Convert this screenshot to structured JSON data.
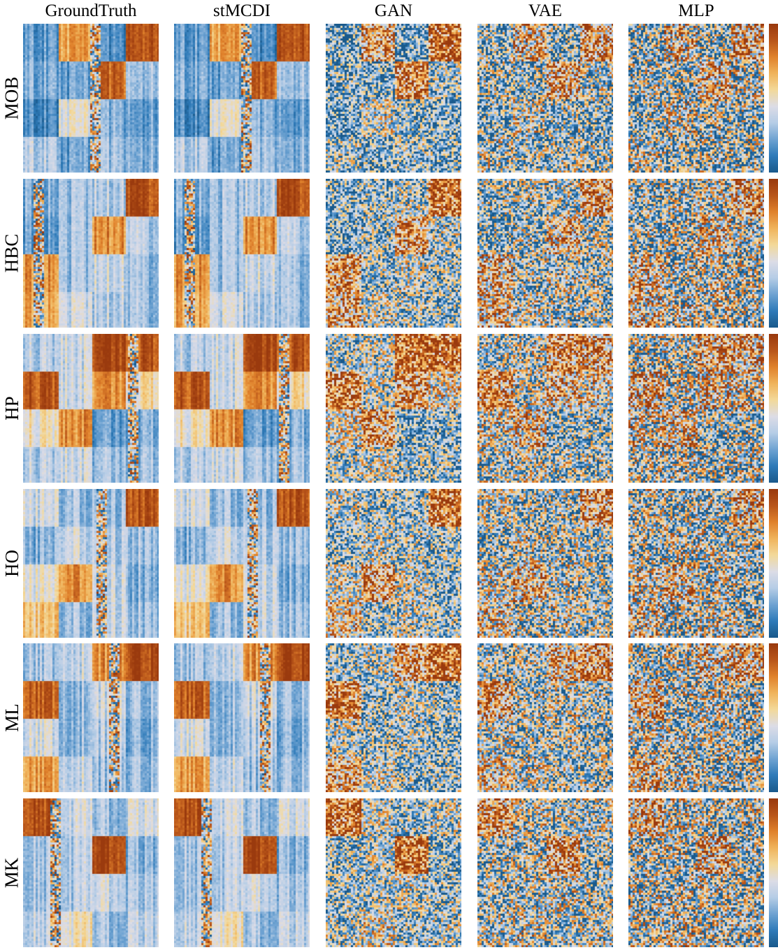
{
  "chart_data": {
    "type": "heatmap",
    "columns": [
      "GroundTruth",
      "stMCDI",
      "GAN",
      "VAE",
      "MLP"
    ],
    "rows": [
      "MOB",
      "HBC",
      "HP",
      "HO",
      "ML",
      "MK"
    ],
    "value_range": [
      0,
      1
    ],
    "colormap": {
      "low": "#1a5a8c",
      "mid": "#dcdce6",
      "high": "#9a3a0e",
      "stops": [
        "#1a5a8c",
        "#2f7bb9",
        "#6fa3d2",
        "#b6cde6",
        "#dcdce6",
        "#f3d99a",
        "#f0b45c",
        "#e0822c",
        "#b9561a",
        "#9a3a0e"
      ]
    },
    "block_levels": {
      "MOB": [
        [
          0.2,
          0.7,
          0.15,
          0.9
        ],
        [
          0.25,
          0.2,
          0.85,
          0.3
        ],
        [
          0.15,
          0.45,
          0.25,
          0.2
        ],
        [
          0.35,
          0.2,
          0.3,
          0.25
        ]
      ],
      "HBC": [
        [
          0.25,
          0.3,
          0.35,
          0.92
        ],
        [
          0.2,
          0.3,
          0.75,
          0.35
        ],
        [
          0.75,
          0.3,
          0.4,
          0.3
        ],
        [
          0.7,
          0.4,
          0.35,
          0.3
        ]
      ],
      "HP": [
        [
          0.35,
          0.4,
          0.95,
          0.9
        ],
        [
          0.9,
          0.4,
          0.75,
          0.55
        ],
        [
          0.5,
          0.75,
          0.2,
          0.25
        ],
        [
          0.35,
          0.4,
          0.3,
          0.3
        ]
      ],
      "HO": [
        [
          0.4,
          0.3,
          0.3,
          0.9
        ],
        [
          0.25,
          0.4,
          0.35,
          0.3
        ],
        [
          0.45,
          0.75,
          0.4,
          0.25
        ],
        [
          0.6,
          0.3,
          0.4,
          0.3
        ]
      ],
      "ML": [
        [
          0.3,
          0.4,
          0.75,
          0.95
        ],
        [
          0.85,
          0.3,
          0.4,
          0.3
        ],
        [
          0.4,
          0.3,
          0.35,
          0.25
        ],
        [
          0.7,
          0.4,
          0.3,
          0.3
        ]
      ],
      "MK": [
        [
          0.9,
          0.4,
          0.3,
          0.4
        ],
        [
          0.3,
          0.35,
          0.95,
          0.25
        ],
        [
          0.3,
          0.35,
          0.4,
          0.3
        ],
        [
          0.35,
          0.5,
          0.3,
          0.35
        ]
      ]
    },
    "noise_level": {
      "GroundTruth": 0.03,
      "stMCDI": 0.03,
      "GAN": 0.26,
      "VAE": 0.3,
      "MLP": 0.33
    },
    "block_contrast": {
      "GroundTruth": 1.0,
      "stMCDI": 1.0,
      "GAN": 0.85,
      "VAE": 0.6,
      "MLP": 0.5
    },
    "colorbar": {
      "present": true,
      "tick_labels": []
    }
  }
}
